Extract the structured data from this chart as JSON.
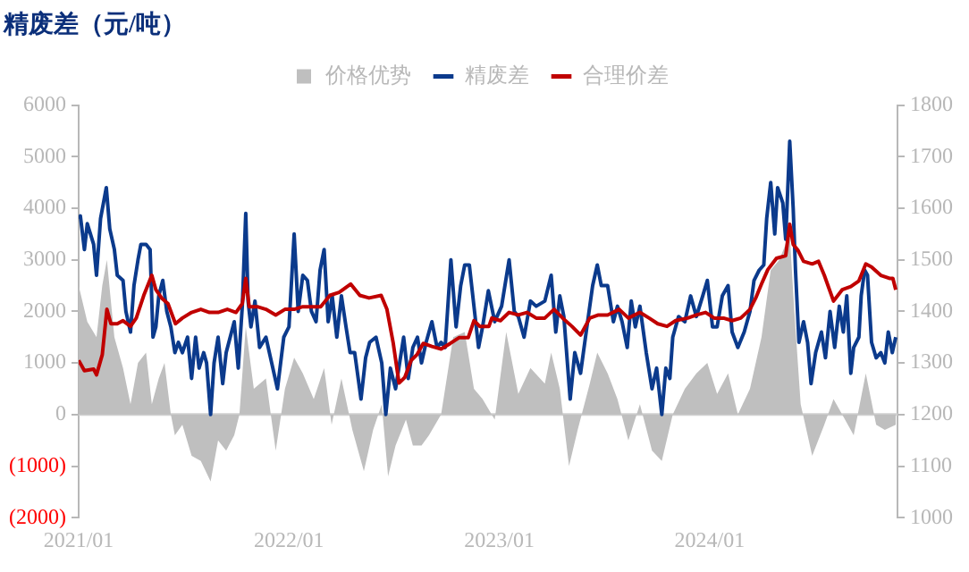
{
  "chart_data": {
    "type": "line",
    "title": "精废差（元/吨）",
    "legend": "top",
    "xlim": [
      "2021-01-01",
      "2024-11-22"
    ],
    "xticks": [
      {
        "value": "2021-01-01",
        "label": "2021/01"
      },
      {
        "value": "2022-01-01",
        "label": "2022/01"
      },
      {
        "value": "2023-01-01",
        "label": "2023/01"
      },
      {
        "value": "2024-01-01",
        "label": "2024/01"
      }
    ],
    "ylim": [
      -2000,
      6000
    ],
    "yticks": [
      {
        "value": -2000,
        "label": "(2000)"
      },
      {
        "value": -1000,
        "label": "(1000)"
      },
      0,
      1000,
      2000,
      3000,
      4000,
      5000,
      6000
    ],
    "y2lim": [
      1000,
      1800
    ],
    "y2ticks": [
      1000,
      1100,
      1200,
      1300,
      1400,
      1500,
      1600,
      1700,
      1800
    ],
    "series": [
      {
        "name": "价格优势",
        "type": "area",
        "color": "#bfbfbf",
        "x": [
          "2021-01-01",
          "2021-01-16",
          "2021-02-01",
          "2021-02-11",
          "2021-02-19",
          "2021-03-04",
          "2021-03-19",
          "2021-04-01",
          "2021-04-14",
          "2021-04-28",
          "2021-05-08",
          "2021-05-20",
          "2021-05-30",
          "2021-06-10",
          "2021-06-17",
          "2021-06-30",
          "2021-07-16",
          "2021-08-01",
          "2021-08-18",
          "2021-08-31",
          "2021-09-14",
          "2021-09-28",
          "2021-10-07",
          "2021-10-18",
          "2021-11-01",
          "2021-11-22",
          "2021-12-09",
          "2021-12-25",
          "2022-01-10",
          "2022-01-25",
          "2022-02-13",
          "2022-03-03",
          "2022-03-16",
          "2022-04-02",
          "2022-04-21",
          "2022-05-11",
          "2022-05-27",
          "2022-06-11",
          "2022-06-22",
          "2022-07-05",
          "2022-07-23",
          "2022-08-04",
          "2022-08-19",
          "2022-09-01",
          "2022-09-22",
          "2022-10-13",
          "2022-11-02",
          "2022-11-18",
          "2022-12-03",
          "2022-12-24",
          "2023-01-13",
          "2023-02-03",
          "2023-02-24",
          "2023-03-21",
          "2023-04-01",
          "2023-04-16",
          "2023-05-02",
          "2023-05-17",
          "2023-06-07",
          "2023-06-20",
          "2023-07-08",
          "2023-07-25",
          "2023-08-13",
          "2023-09-02",
          "2023-09-23",
          "2023-10-10",
          "2023-10-29",
          "2023-11-19",
          "2023-12-09",
          "2023-12-28",
          "2024-01-14",
          "2024-02-02",
          "2024-02-19",
          "2024-03-11",
          "2024-03-31",
          "2024-04-16",
          "2024-05-01",
          "2024-05-19",
          "2024-05-27",
          "2024-06-07",
          "2024-06-27",
          "2024-07-18",
          "2024-08-03",
          "2024-08-18",
          "2024-09-07",
          "2024-09-28",
          "2024-10-16",
          "2024-10-31",
          "2024-11-19"
        ],
        "values": [
          2500,
          1800,
          1500,
          2500,
          3000,
          1500,
          900,
          200,
          1000,
          1200,
          200,
          700,
          1000,
          0,
          -400,
          -200,
          -800,
          -900,
          -1300,
          -500,
          -700,
          -400,
          0,
          1700,
          500,
          700,
          -700,
          500,
          1100,
          800,
          300,
          900,
          -200,
          700,
          -300,
          -1100,
          -300,
          200,
          -1200,
          -600,
          -100,
          -600,
          -600,
          -400,
          0,
          1500,
          1600,
          500,
          300,
          -100,
          1600,
          400,
          900,
          600,
          1200,
          500,
          -1000,
          -300,
          600,
          1200,
          800,
          300,
          -500,
          200,
          -700,
          -900,
          0,
          500,
          800,
          1000,
          400,
          800,
          0,
          500,
          1500,
          2800,
          3000,
          3500,
          2000,
          200,
          -800,
          -200,
          300,
          0,
          -400,
          800,
          -200,
          -300,
          -200
        ]
      },
      {
        "name": "精废差",
        "type": "line",
        "color": "#0b3a8c",
        "x": [
          "2021-01-01",
          "2021-01-04",
          "2021-01-11",
          "2021-01-16",
          "2021-01-27",
          "2021-02-01",
          "2021-02-08",
          "2021-02-18",
          "2021-02-24",
          "2021-03-04",
          "2021-03-09",
          "2021-03-19",
          "2021-03-24",
          "2021-04-01",
          "2021-04-07",
          "2021-04-14",
          "2021-04-19",
          "2021-04-28",
          "2021-05-05",
          "2021-05-10",
          "2021-05-15",
          "2021-05-20",
          "2021-05-27",
          "2021-06-03",
          "2021-06-10",
          "2021-06-17",
          "2021-06-23",
          "2021-06-30",
          "2021-07-09",
          "2021-07-16",
          "2021-07-23",
          "2021-07-29",
          "2021-08-06",
          "2021-08-11",
          "2021-08-18",
          "2021-08-24",
          "2021-08-31",
          "2021-09-08",
          "2021-09-14",
          "2021-09-21",
          "2021-09-28",
          "2021-10-05",
          "2021-10-12",
          "2021-10-18",
          "2021-10-22",
          "2021-10-27",
          "2021-11-03",
          "2021-11-11",
          "2021-11-22",
          "2021-12-02",
          "2021-12-12",
          "2021-12-23",
          "2022-01-01",
          "2022-01-10",
          "2022-01-17",
          "2022-01-25",
          "2022-02-02",
          "2022-02-09",
          "2022-02-17",
          "2022-02-24",
          "2022-03-03",
          "2022-03-10",
          "2022-03-17",
          "2022-03-25",
          "2022-04-02",
          "2022-04-10",
          "2022-04-17",
          "2022-04-25",
          "2022-05-06",
          "2022-05-14",
          "2022-05-21",
          "2022-06-01",
          "2022-06-11",
          "2022-06-18",
          "2022-06-26",
          "2022-07-05",
          "2022-07-12",
          "2022-07-19",
          "2022-07-27",
          "2022-08-04",
          "2022-08-12",
          "2022-08-19",
          "2022-08-27",
          "2022-09-06",
          "2022-09-15",
          "2022-09-22",
          "2022-09-29",
          "2022-10-09",
          "2022-10-18",
          "2022-10-26",
          "2022-11-02",
          "2022-11-10",
          "2022-11-18",
          "2022-11-26",
          "2022-12-03",
          "2022-12-13",
          "2022-12-24",
          "2023-01-05",
          "2023-01-18",
          "2023-01-27",
          "2023-02-03",
          "2023-02-13",
          "2023-02-24",
          "2023-03-06",
          "2023-03-21",
          "2023-04-01",
          "2023-04-09",
          "2023-04-16",
          "2023-04-23",
          "2023-05-04",
          "2023-05-12",
          "2023-05-22",
          "2023-06-02",
          "2023-06-12",
          "2023-06-20",
          "2023-06-27",
          "2023-07-08",
          "2023-07-18",
          "2023-07-25",
          "2023-08-02",
          "2023-08-11",
          "2023-08-18",
          "2023-08-25",
          "2023-09-02",
          "2023-09-13",
          "2023-09-23",
          "2023-10-01",
          "2023-10-10",
          "2023-10-17",
          "2023-10-24",
          "2023-10-29",
          "2023-11-08",
          "2023-11-19",
          "2023-11-29",
          "2023-12-09",
          "2023-12-20",
          "2023-12-28",
          "2024-01-06",
          "2024-01-14",
          "2024-01-23",
          "2024-02-02",
          "2024-02-09",
          "2024-02-19",
          "2024-03-01",
          "2024-03-11",
          "2024-03-18",
          "2024-03-27",
          "2024-04-04",
          "2024-04-09",
          "2024-04-16",
          "2024-04-23",
          "2024-04-28",
          "2024-05-07",
          "2024-05-12",
          "2024-05-19",
          "2024-05-25",
          "2024-05-29",
          "2024-06-04",
          "2024-06-12",
          "2024-06-19",
          "2024-06-25",
          "2024-07-03",
          "2024-07-13",
          "2024-07-20",
          "2024-07-28",
          "2024-08-05",
          "2024-08-13",
          "2024-08-20",
          "2024-08-26",
          "2024-09-02",
          "2024-09-07",
          "2024-09-16",
          "2024-09-20",
          "2024-09-26",
          "2024-10-01",
          "2024-10-08",
          "2024-10-16",
          "2024-10-24",
          "2024-10-31",
          "2024-11-06",
          "2024-11-13",
          "2024-11-19"
        ],
        "values": [
          3800,
          3850,
          3200,
          3700,
          3300,
          2700,
          3800,
          4400,
          3600,
          3200,
          2700,
          2600,
          2000,
          1600,
          2500,
          3000,
          3300,
          3300,
          3200,
          1500,
          1700,
          2300,
          2600,
          2000,
          1700,
          1200,
          1400,
          1200,
          1500,
          700,
          1500,
          900,
          1200,
          1000,
          0,
          1000,
          1500,
          600,
          1200,
          1500,
          1800,
          900,
          2100,
          3900,
          2200,
          1700,
          2200,
          1300,
          1500,
          1000,
          500,
          1500,
          1700,
          3500,
          2000,
          2700,
          2600,
          2000,
          1800,
          2800,
          3200,
          1800,
          2300,
          1500,
          2300,
          1700,
          1200,
          1200,
          300,
          1100,
          1400,
          1500,
          1000,
          0,
          900,
          500,
          1000,
          1500,
          700,
          1300,
          1500,
          1000,
          1400,
          1800,
          1300,
          1400,
          1300,
          3000,
          1700,
          2500,
          2900,
          2900,
          2100,
          1300,
          1700,
          2400,
          1800,
          2100,
          3000,
          2000,
          1900,
          1500,
          2200,
          2100,
          2200,
          2700,
          1600,
          2300,
          1900,
          300,
          1200,
          800,
          1700,
          2500,
          2900,
          2500,
          2500,
          1800,
          2100,
          1800,
          1300,
          2200,
          1700,
          2100,
          1200,
          500,
          900,
          0,
          900,
          700,
          1500,
          1900,
          1800,
          2300,
          1900,
          2300,
          2600,
          1700,
          1700,
          2300,
          2500,
          1600,
          1300,
          1600,
          2000,
          2600,
          2800,
          2900,
          3800,
          4500,
          3500,
          4400,
          4100,
          3400,
          5300,
          4000,
          2800,
          1400,
          1800,
          1400,
          600,
          1200,
          1600,
          1100,
          2000,
          1300,
          2100,
          1600,
          2300,
          800,
          1300,
          1500,
          2300,
          2800,
          2700,
          1400,
          1100,
          1200,
          1000,
          1600,
          1200,
          1500
        ]
      },
      {
        "name": "合理价差",
        "type": "line",
        "axis": "y2",
        "color": "#c00000",
        "x": [
          "2021-01-01",
          "2021-01-11",
          "2021-01-27",
          "2021-02-01",
          "2021-02-11",
          "2021-02-19",
          "2021-02-26",
          "2021-03-09",
          "2021-03-19",
          "2021-04-01",
          "2021-04-11",
          "2021-04-24",
          "2021-05-08",
          "2021-05-15",
          "2021-05-25",
          "2021-06-05",
          "2021-06-18",
          "2021-06-30",
          "2021-07-16",
          "2021-08-01",
          "2021-08-16",
          "2021-08-31",
          "2021-09-16",
          "2021-10-01",
          "2021-10-12",
          "2021-10-18",
          "2021-10-24",
          "2021-11-07",
          "2021-11-22",
          "2021-12-09",
          "2021-12-25",
          "2022-01-10",
          "2022-01-25",
          "2022-02-10",
          "2022-02-25",
          "2022-03-13",
          "2022-03-29",
          "2022-04-18",
          "2022-05-04",
          "2022-05-20",
          "2022-06-10",
          "2022-06-20",
          "2022-07-01",
          "2022-07-11",
          "2022-07-21",
          "2022-08-01",
          "2022-08-11",
          "2022-08-22",
          "2022-09-06",
          "2022-09-22",
          "2022-10-08",
          "2022-10-23",
          "2022-11-08",
          "2022-11-18",
          "2022-11-28",
          "2022-12-14",
          "2022-12-19",
          "2023-01-03",
          "2023-01-18",
          "2023-02-03",
          "2023-02-18",
          "2023-03-06",
          "2023-03-21",
          "2023-04-06",
          "2023-04-21",
          "2023-05-07",
          "2023-05-22",
          "2023-06-07",
          "2023-06-22",
          "2023-07-08",
          "2023-07-28",
          "2023-08-13",
          "2023-09-02",
          "2023-09-18",
          "2023-10-03",
          "2023-10-19",
          "2023-11-03",
          "2023-11-24",
          "2023-12-09",
          "2023-12-25",
          "2024-01-09",
          "2024-01-25",
          "2024-02-09",
          "2024-02-24",
          "2024-03-11",
          "2024-03-21",
          "2024-03-31",
          "2024-04-11",
          "2024-04-26",
          "2024-05-12",
          "2024-05-19",
          "2024-05-25",
          "2024-06-02",
          "2024-06-12",
          "2024-06-27",
          "2024-07-08",
          "2024-07-18",
          "2024-08-03",
          "2024-08-18",
          "2024-09-02",
          "2024-09-16",
          "2024-09-28",
          "2024-10-08",
          "2024-10-24",
          "2024-11-08",
          "2024-11-14",
          "2024-11-19"
        ],
        "values": [
          1305,
          1285,
          1288,
          1277,
          1316,
          1404,
          1376,
          1376,
          1382,
          1371,
          1387,
          1431,
          1470,
          1442,
          1426,
          1415,
          1376,
          1387,
          1398,
          1404,
          1398,
          1398,
          1404,
          1398,
          1415,
          1464,
          1409,
          1409,
          1404,
          1393,
          1404,
          1404,
          1409,
          1409,
          1409,
          1431,
          1437,
          1453,
          1431,
          1426,
          1431,
          1404,
          1338,
          1261,
          1272,
          1305,
          1316,
          1338,
          1332,
          1327,
          1338,
          1349,
          1349,
          1382,
          1371,
          1371,
          1387,
          1382,
          1398,
          1393,
          1398,
          1387,
          1387,
          1404,
          1387,
          1371,
          1354,
          1387,
          1393,
          1393,
          1404,
          1387,
          1398,
          1387,
          1376,
          1371,
          1382,
          1387,
          1393,
          1398,
          1387,
          1387,
          1382,
          1387,
          1404,
          1426,
          1453,
          1481,
          1503,
          1508,
          1569,
          1530,
          1519,
          1497,
          1492,
          1497,
          1470,
          1420,
          1442,
          1448,
          1459,
          1492,
          1486,
          1470,
          1464,
          1464,
          1442
        ]
      }
    ]
  }
}
